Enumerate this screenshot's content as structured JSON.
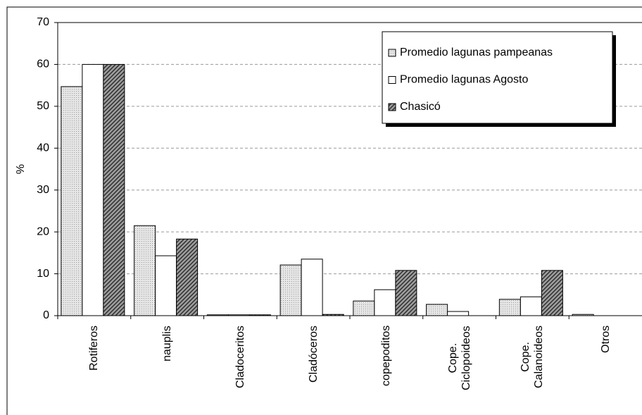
{
  "chart_data": {
    "type": "bar",
    "y_label": "%",
    "categories": [
      "Rotiferos",
      "nauplis",
      "Cladoceritos",
      "Cladóceros",
      "copepoditos",
      "Cope.\nCiclopoideos",
      "Cope.\nCalanoideos",
      "Otros"
    ],
    "series": [
      {
        "name": "Promedio lagunas pampeanas",
        "color": "#d9d9d9",
        "fill_pattern": "dotted",
        "values": [
          54.7,
          21.5,
          0.2,
          12.1,
          3.5,
          2.7,
          3.9,
          0.3
        ]
      },
      {
        "name": "Promedio lagunas Agosto",
        "color": "#ffffff",
        "fill_pattern": "solid",
        "values": [
          60,
          14.3,
          0.2,
          13.5,
          6.2,
          1.0,
          4.5,
          0
        ]
      },
      {
        "name": "Chasicó",
        "color": "#808080",
        "fill_pattern": "hatched",
        "values": [
          60,
          18.3,
          0.2,
          0.3,
          10.8,
          0,
          10.8,
          0
        ]
      }
    ],
    "ylim": [
      0,
      70
    ],
    "yticks": [
      0,
      10,
      20,
      30,
      40,
      50,
      60,
      70
    ],
    "grid": true,
    "legend": "top-right"
  }
}
